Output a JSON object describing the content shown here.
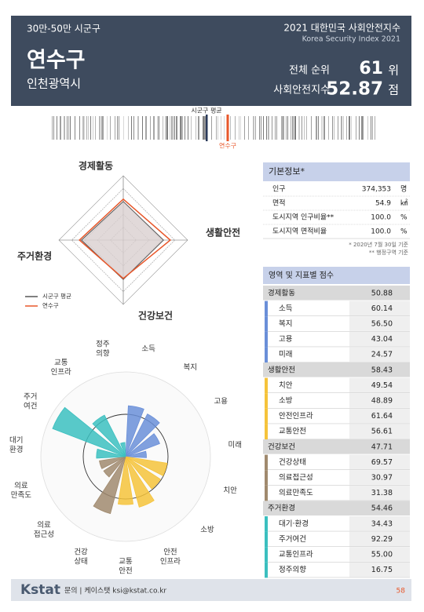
{
  "header": {
    "category": "30만-50만 시군구",
    "index_title": "2021 대한민국 사회안전지수",
    "index_subtitle": "Korea Security Index 2021",
    "region": "연수구",
    "province": "인천광역시",
    "rank_label": "전체 순위",
    "rank": 61,
    "rank_unit": "위",
    "score_label": "사회안전지수",
    "score": 52.87,
    "score_unit": "점"
  },
  "distribution": {
    "average_label": "시군구 평균",
    "region_label": "연수구"
  },
  "radar": {
    "axes": [
      "경제활동",
      "생활안전",
      "건강보건",
      "주거환경"
    ],
    "rlim": [
      0,
      80
    ],
    "series": [
      {
        "name": "시군구 평균",
        "color": "#555555",
        "fill": "#d9cfd0",
        "values": [
          48,
          50,
          49,
          52
        ]
      },
      {
        "name": "연수구",
        "color": "#e8572a",
        "values": [
          50.88,
          58.43,
          47.71,
          54.46
        ]
      }
    ]
  },
  "basic_info": {
    "title": "기본정보*",
    "rows": [
      [
        "인구",
        "374,353",
        "명"
      ],
      [
        "면적",
        "54.9",
        "㎢"
      ],
      [
        "도시지역 인구비율**",
        "100.0",
        "%"
      ],
      [
        "도시지역 면적비율",
        "100.0",
        "%"
      ]
    ],
    "notes": [
      "* 2020년 7월 30일 기준",
      "** 행정구역 기준"
    ]
  },
  "scores": {
    "title": "영역 및 지표별 점수",
    "domains": [
      {
        "name": "경제활동",
        "score": 50.88,
        "color": "#6a8fd8",
        "indicators": [
          {
            "name": "소득",
            "score": 60.14
          },
          {
            "name": "복지",
            "score": 56.5,
            "score_label": "56.50"
          },
          {
            "name": "고용",
            "score": 43.04
          },
          {
            "name": "미래",
            "score": 24.57
          }
        ]
      },
      {
        "name": "생활안전",
        "score": 58.43,
        "color": "#f5c33b",
        "indicators": [
          {
            "name": "치안",
            "score": 49.54
          },
          {
            "name": "소방",
            "score": 48.89
          },
          {
            "name": "안전인프라",
            "score": 61.64
          },
          {
            "name": "교통안전",
            "score": 56.61
          }
        ]
      },
      {
        "name": "건강보건",
        "score": 47.71,
        "color": "#a08a6e",
        "indicators": [
          {
            "name": "건강상태",
            "score": 69.57
          },
          {
            "name": "의료접근성",
            "score": 30.97
          },
          {
            "name": "의료만족도",
            "score": 31.38
          }
        ]
      },
      {
        "name": "주거환경",
        "score": 54.46,
        "color": "#3bbfbf",
        "indicators": [
          {
            "name": "대기·환경",
            "score": 34.43
          },
          {
            "name": "주거여건",
            "score": 92.29
          },
          {
            "name": "교통인프라",
            "score": 55,
            "score_label": "55.00"
          },
          {
            "name": "정주의향",
            "score": 16.75
          }
        ]
      }
    ]
  },
  "polar": {
    "rlim": [
      0,
      100
    ],
    "labels": [
      [
        "소득"
      ],
      [
        "복지"
      ],
      [
        "고용"
      ],
      [
        "미래"
      ],
      [
        "치안"
      ],
      [
        "소방"
      ],
      [
        "안전",
        "인프라"
      ],
      [
        "교통",
        "안전"
      ],
      [
        "건강",
        "상태"
      ],
      [
        "의료",
        "접근성"
      ],
      [
        "의료",
        "만족도"
      ],
      [
        "대기",
        "환경"
      ],
      [
        "주거",
        "여건"
      ],
      [
        "교통",
        "인프라"
      ],
      [
        "정주",
        "의향"
      ]
    ]
  },
  "footer": {
    "logo": "Kstat",
    "contact": "문의 | 케이스탯 ksi@kstat.co.kr",
    "page": "58"
  }
}
